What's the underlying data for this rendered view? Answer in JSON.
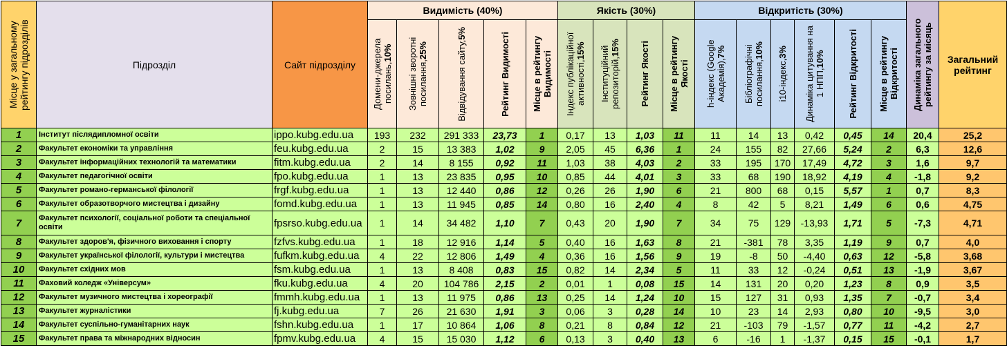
{
  "header": {
    "place": "Місце у загальному рейтингу підрозділів",
    "unit": "Підрозділ",
    "site": "Сайт підрозділу",
    "visibility_group": "Видимість (40%)",
    "quality_group": "Якість (30%)",
    "openness_group": "Відкритість (30%)",
    "dynamics": "Динаміка загального рейтингу за місяць",
    "total": "Загальний рейтинг",
    "visibility_cols": [
      {
        "text": "Домени-джерела посилань,",
        "bold": "10%"
      },
      {
        "text": "Зовнішні зворотні посилання,",
        "bold": "25%"
      },
      {
        "text": "Відвідування сайту,",
        "bold": "5%"
      },
      {
        "text": "",
        "bold": "Рейтинг Видимості"
      },
      {
        "text": "",
        "bold": "Місце в рейтингу Видимості"
      }
    ],
    "quality_cols": [
      {
        "text": "Індекс публікаційної активності,",
        "bold": "15%"
      },
      {
        "text": "Інституційний репозиторій,",
        "bold": "15%"
      },
      {
        "text": "",
        "bold": "Рейтинг Якості"
      },
      {
        "text": "",
        "bold": "Місце в рейтингу Якості"
      }
    ],
    "openness_cols": [
      {
        "text": "h-індекс (Google Академія),",
        "bold": "7%"
      },
      {
        "text": "Бібліографічні посилання,",
        "bold": "10%"
      },
      {
        "text": "i10-індекс,",
        "bold": "3%"
      },
      {
        "text": "Динаміка цитування на 1 НПП,",
        "bold": "10%"
      },
      {
        "text": "",
        "bold": "Рейтинг Відкритості"
      },
      {
        "text": "",
        "bold": "Місце в рейтингу Відкритості"
      }
    ]
  },
  "colors": {
    "place_header": "#ffd36b",
    "unit_header": "#e4dfec",
    "site_header": "#f79646",
    "visibility_header": "#fde9d9",
    "quality_header": "#d8e4bc",
    "openness_header": "#c5d9f1",
    "dynamics_header": "#ccc0da",
    "row_bg": "#ccff99",
    "rank_bg": "#92d050",
    "total_bg": "#ffc66e"
  },
  "rows": [
    {
      "rank": "1",
      "unit": "Інститут післядипломної освіти",
      "site": "ippo.kubg.edu.ua",
      "v1": "193",
      "v2": "232",
      "v3": "291 333",
      "vr": "23,73",
      "vp": "1",
      "q1": "0,17",
      "q2": "13",
      "qr": "1,03",
      "qp": "11",
      "o1": "11",
      "o2": "14",
      "o3": "13",
      "o4": "0,42",
      "or": "0,45",
      "op": "14",
      "dyn": "20,4",
      "total": "25,2"
    },
    {
      "rank": "2",
      "unit": "Факультет економіки та управління",
      "site": "feu.kubg.edu.ua",
      "v1": "2",
      "v2": "15",
      "v3": "13 383",
      "vr": "1,02",
      "vp": "9",
      "q1": "2,05",
      "q2": "45",
      "qr": "6,36",
      "qp": "1",
      "o1": "24",
      "o2": "155",
      "o3": "82",
      "o4": "27,66",
      "or": "5,24",
      "op": "2",
      "dyn": "6,3",
      "total": "12,6"
    },
    {
      "rank": "3",
      "unit": "Факультет інформаційних технологій та математики",
      "site": "fitm.kubg.edu.ua",
      "v1": "2",
      "v2": "14",
      "v3": "8 155",
      "vr": "0,92",
      "vp": "11",
      "q1": "1,03",
      "q2": "38",
      "qr": "4,03",
      "qp": "2",
      "o1": "33",
      "o2": "195",
      "o3": "170",
      "o4": "17,49",
      "or": "4,72",
      "op": "3",
      "dyn": "1,6",
      "total": "9,7"
    },
    {
      "rank": "4",
      "unit": "Факультет педагогічної освіти",
      "site": "fpo.kubg.edu.ua",
      "v1": "1",
      "v2": "13",
      "v3": "23 835",
      "vr": "0,95",
      "vp": "10",
      "q1": "0,85",
      "q2": "44",
      "qr": "4,01",
      "qp": "3",
      "o1": "33",
      "o2": "68",
      "o3": "190",
      "o4": "18,92",
      "or": "4,19",
      "op": "4",
      "dyn": "-1,8",
      "total": "9,2"
    },
    {
      "rank": "5",
      "unit": "Факультет романо-германської філології",
      "site": "frgf.kubg.edu.ua",
      "v1": "1",
      "v2": "13",
      "v3": "12 440",
      "vr": "0,86",
      "vp": "12",
      "q1": "0,26",
      "q2": "26",
      "qr": "1,90",
      "qp": "6",
      "o1": "21",
      "o2": "800",
      "o3": "68",
      "o4": "0,15",
      "or": "5,57",
      "op": "1",
      "dyn": "0,7",
      "total": "8,3"
    },
    {
      "rank": "6",
      "unit": "Факультет образотворчого мистецтва і дизайну",
      "site": "fomd.kubg.edu.ua",
      "v1": "1",
      "v2": "13",
      "v3": "11 945",
      "vr": "0,85",
      "vp": "14",
      "q1": "0,80",
      "q2": "16",
      "qr": "2,40",
      "qp": "4",
      "o1": "8",
      "o2": "42",
      "o3": "5",
      "o4": "8,21",
      "or": "1,49",
      "op": "6",
      "dyn": "0,6",
      "total": "4,75"
    },
    {
      "rank": "7",
      "unit": "Факультет психології, соціальної роботи та спеціальної освіти",
      "site": "fpsrso.kubg.edu.ua",
      "v1": "1",
      "v2": "14",
      "v3": "34 482",
      "vr": "1,10",
      "vp": "7",
      "q1": "0,43",
      "q2": "20",
      "qr": "1,90",
      "qp": "7",
      "o1": "34",
      "o2": "75",
      "o3": "129",
      "o4": "-13,93",
      "or": "1,71",
      "op": "5",
      "dyn": "-7,3",
      "total": "4,71"
    },
    {
      "rank": "8",
      "unit": "Факультет здоров'я, фізичного виховання і спорту",
      "site": "fzfvs.kubg.edu.ua",
      "v1": "1",
      "v2": "18",
      "v3": "12 916",
      "vr": "1,14",
      "vp": "5",
      "q1": "0,40",
      "q2": "16",
      "qr": "1,63",
      "qp": "8",
      "o1": "21",
      "o2": "-381",
      "o3": "78",
      "o4": "3,35",
      "or": "1,19",
      "op": "9",
      "dyn": "0,7",
      "total": "4,0"
    },
    {
      "rank": "9",
      "unit": "Факультет української філології, культури і мистецтва",
      "site": "fufkm.kubg.edu.ua",
      "v1": "4",
      "v2": "22",
      "v3": "12 806",
      "vr": "1,49",
      "vp": "4",
      "q1": "0,36",
      "q2": "16",
      "qr": "1,56",
      "qp": "9",
      "o1": "19",
      "o2": "-8",
      "o3": "50",
      "o4": "-4,40",
      "or": "0,63",
      "op": "12",
      "dyn": "-5,8",
      "total": "3,68"
    },
    {
      "rank": "10",
      "unit": "Факультет східних мов",
      "site": "fsm.kubg.edu.ua",
      "v1": "1",
      "v2": "13",
      "v3": "8 408",
      "vr": "0,83",
      "vp": "15",
      "q1": "0,82",
      "q2": "14",
      "qr": "2,34",
      "qp": "5",
      "o1": "11",
      "o2": "33",
      "o3": "12",
      "o4": "-0,24",
      "or": "0,51",
      "op": "13",
      "dyn": "-1,9",
      "total": "3,67"
    },
    {
      "rank": "11",
      "unit": "Фаховий коледж «Універсум»",
      "site": "fku.kubg.edu.ua",
      "v1": "4",
      "v2": "20",
      "v3": "104 786",
      "vr": "2,15",
      "vp": "2",
      "q1": "0,01",
      "q2": "1",
      "qr": "0,08",
      "qp": "15",
      "o1": "14",
      "o2": "131",
      "o3": "20",
      "o4": "0,20",
      "or": "1,23",
      "op": "8",
      "dyn": "0,9",
      "total": "3,5"
    },
    {
      "rank": "12",
      "unit": "Факультет музичного мистецтва і хореографії",
      "site": "fmmh.kubg.edu.ua",
      "v1": "1",
      "v2": "13",
      "v3": "11 975",
      "vr": "0,86",
      "vp": "13",
      "q1": "0,25",
      "q2": "14",
      "qr": "1,24",
      "qp": "10",
      "o1": "15",
      "o2": "127",
      "o3": "31",
      "o4": "0,93",
      "or": "1,35",
      "op": "7",
      "dyn": "-0,7",
      "total": "3,4"
    },
    {
      "rank": "13",
      "unit": "Факультет журналістики",
      "site": "fj.kubg.edu.ua",
      "v1": "7",
      "v2": "26",
      "v3": "21 630",
      "vr": "1,91",
      "vp": "3",
      "q1": "0,06",
      "q2": "3",
      "qr": "0,28",
      "qp": "14",
      "o1": "10",
      "o2": "23",
      "o3": "14",
      "o4": "2,93",
      "or": "0,80",
      "op": "10",
      "dyn": "-9,5",
      "total": "3,0"
    },
    {
      "rank": "14",
      "unit": "Факультет суспільно-гуманітарних наук",
      "site": "fshn.kubg.edu.ua",
      "v1": "1",
      "v2": "17",
      "v3": "10 864",
      "vr": "1,06",
      "vp": "8",
      "q1": "0,21",
      "q2": "8",
      "qr": "0,84",
      "qp": "12",
      "o1": "21",
      "o2": "-103",
      "o3": "79",
      "o4": "-1,57",
      "or": "0,77",
      "op": "11",
      "dyn": "-4,2",
      "total": "2,7"
    },
    {
      "rank": "15",
      "unit": "Факультет права та міжнародних відносин",
      "site": "fpmv.kubg.edu.ua",
      "v1": "4",
      "v2": "15",
      "v3": "15 030",
      "vr": "1,12",
      "vp": "6",
      "q1": "0,13",
      "q2": "3",
      "qr": "0,40",
      "qp": "13",
      "o1": "6",
      "o2": "-16",
      "o3": "1",
      "o4": "-1,37",
      "or": "0,15",
      "op": "15",
      "dyn": "-0,1",
      "total": "1,7"
    }
  ]
}
